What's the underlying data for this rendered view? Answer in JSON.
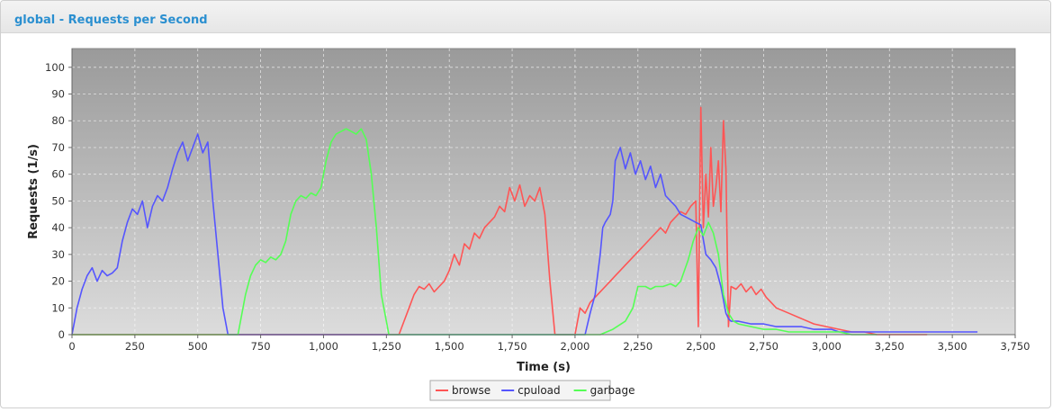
{
  "panel": {
    "title": "global - Requests per Second"
  },
  "colors": {
    "browse": "#ff5555",
    "cpuload": "#5555ff",
    "garbage": "#55ff55"
  },
  "chart_data": {
    "type": "line",
    "title": "",
    "xlabel": "Time (s)",
    "ylabel": "Requests (1/s)",
    "xlim": [
      0,
      3750
    ],
    "ylim": [
      0,
      107
    ],
    "x_ticks": [
      0,
      250,
      500,
      750,
      1000,
      1250,
      1500,
      1750,
      2000,
      2250,
      2500,
      2750,
      3000,
      3250,
      3500,
      3750
    ],
    "x_tick_labels": [
      "0",
      "250",
      "500",
      "750",
      "1,000",
      "1,250",
      "1,500",
      "1,750",
      "2,000",
      "2,250",
      "2,500",
      "2,750",
      "3,000",
      "3,250",
      "3,500",
      "3,750"
    ],
    "y_ticks": [
      0,
      10,
      20,
      30,
      40,
      50,
      60,
      70,
      80,
      90,
      100
    ],
    "y_tick_labels": [
      "0",
      "10",
      "20",
      "30",
      "40",
      "50",
      "60",
      "70",
      "80",
      "90",
      "100"
    ],
    "grid": true,
    "legend": "bottom-center",
    "series": [
      {
        "name": "browse",
        "color": "#ff5555",
        "x": [
          0,
          1300,
          1320,
          1340,
          1360,
          1380,
          1400,
          1420,
          1440,
          1460,
          1480,
          1500,
          1520,
          1540,
          1560,
          1580,
          1600,
          1620,
          1640,
          1660,
          1680,
          1700,
          1720,
          1740,
          1760,
          1780,
          1800,
          1820,
          1840,
          1860,
          1880,
          1900,
          1920,
          1950,
          2000,
          2020,
          2040,
          2060,
          2080,
          2100,
          2120,
          2140,
          2160,
          2180,
          2200,
          2220,
          2240,
          2260,
          2280,
          2300,
          2320,
          2340,
          2360,
          2380,
          2400,
          2420,
          2440,
          2460,
          2480,
          2490,
          2500,
          2510,
          2520,
          2530,
          2540,
          2550,
          2560,
          2570,
          2580,
          2590,
          2600,
          2610,
          2620,
          2640,
          2660,
          2680,
          2700,
          2720,
          2740,
          2760,
          2780,
          2800,
          2850,
          2900,
          2950,
          3000,
          3050,
          3100,
          3150,
          3200,
          3250,
          3300,
          3350,
          3400
        ],
        "y": [
          0,
          0,
          5,
          10,
          15,
          18,
          17,
          19,
          16,
          18,
          20,
          24,
          30,
          26,
          34,
          32,
          38,
          36,
          40,
          42,
          44,
          48,
          46,
          55,
          50,
          56,
          48,
          52,
          50,
          55,
          45,
          20,
          0,
          0,
          0,
          10,
          8,
          12,
          14,
          16,
          18,
          20,
          22,
          24,
          26,
          28,
          30,
          32,
          34,
          36,
          38,
          40,
          38,
          42,
          44,
          46,
          45,
          48,
          50,
          3,
          85,
          40,
          60,
          44,
          70,
          48,
          55,
          65,
          46,
          80,
          62,
          3,
          18,
          17,
          19,
          16,
          18,
          15,
          17,
          14,
          12,
          10,
          8,
          6,
          4,
          3,
          2,
          1,
          1,
          0,
          0,
          0,
          0,
          0
        ]
      },
      {
        "name": "cpuload",
        "color": "#5555ff",
        "x": [
          0,
          10,
          20,
          40,
          60,
          80,
          100,
          120,
          140,
          160,
          180,
          200,
          220,
          240,
          260,
          280,
          300,
          320,
          340,
          360,
          380,
          400,
          420,
          440,
          460,
          480,
          500,
          520,
          540,
          560,
          580,
          600,
          620,
          2000,
          2040,
          2060,
          2080,
          2100,
          2110,
          2120,
          2140,
          2150,
          2160,
          2180,
          2200,
          2220,
          2240,
          2260,
          2280,
          2300,
          2320,
          2340,
          2360,
          2380,
          2400,
          2420,
          2440,
          2460,
          2480,
          2500,
          2520,
          2540,
          2560,
          2580,
          2600,
          2610,
          2620,
          2650,
          2700,
          2750,
          2800,
          2850,
          2900,
          2950,
          3000,
          3020,
          3050,
          3100,
          3150,
          3200,
          3250,
          3300,
          3350,
          3400,
          3450,
          3500,
          3550,
          3600
        ],
        "y": [
          0,
          5,
          10,
          17,
          22,
          25,
          20,
          24,
          22,
          23,
          25,
          35,
          42,
          47,
          45,
          50,
          40,
          48,
          52,
          50,
          55,
          62,
          68,
          72,
          65,
          70,
          75,
          68,
          72,
          50,
          30,
          10,
          0,
          0,
          0,
          8,
          15,
          30,
          40,
          42,
          45,
          50,
          65,
          70,
          62,
          68,
          60,
          65,
          58,
          63,
          55,
          60,
          52,
          50,
          48,
          45,
          44,
          43,
          42,
          41,
          30,
          28,
          25,
          18,
          8,
          6,
          5,
          5,
          4,
          4,
          3,
          3,
          3,
          2,
          2,
          2,
          1,
          1,
          1,
          1,
          1,
          1,
          1,
          1,
          1,
          1,
          1,
          1
        ]
      },
      {
        "name": "garbage",
        "color": "#55ff55",
        "x": [
          0,
          660,
          670,
          690,
          710,
          730,
          750,
          770,
          790,
          810,
          830,
          850,
          870,
          890,
          910,
          930,
          950,
          970,
          990,
          1010,
          1030,
          1050,
          1070,
          1090,
          1110,
          1130,
          1150,
          1170,
          1190,
          1210,
          1230,
          1260,
          1280,
          2100,
          2150,
          2200,
          2230,
          2250,
          2280,
          2300,
          2320,
          2350,
          2380,
          2400,
          2420,
          2450,
          2470,
          2490,
          2510,
          2530,
          2550,
          2570,
          2590,
          2610,
          2630,
          2650,
          2700,
          2750,
          2800,
          2850,
          2900,
          2950,
          3000,
          3050,
          3100,
          3150,
          3200
        ],
        "y": [
          0,
          0,
          5,
          15,
          22,
          26,
          28,
          27,
          29,
          28,
          30,
          35,
          45,
          50,
          52,
          51,
          53,
          52,
          55,
          65,
          72,
          75,
          76,
          77,
          76,
          75,
          77,
          73,
          60,
          40,
          15,
          0,
          0,
          0,
          2,
          5,
          10,
          18,
          18,
          17,
          18,
          18,
          19,
          18,
          20,
          28,
          35,
          40,
          37,
          42,
          38,
          30,
          15,
          8,
          5,
          4,
          3,
          2,
          2,
          1,
          1,
          1,
          1,
          1,
          0,
          0,
          0
        ]
      }
    ]
  }
}
